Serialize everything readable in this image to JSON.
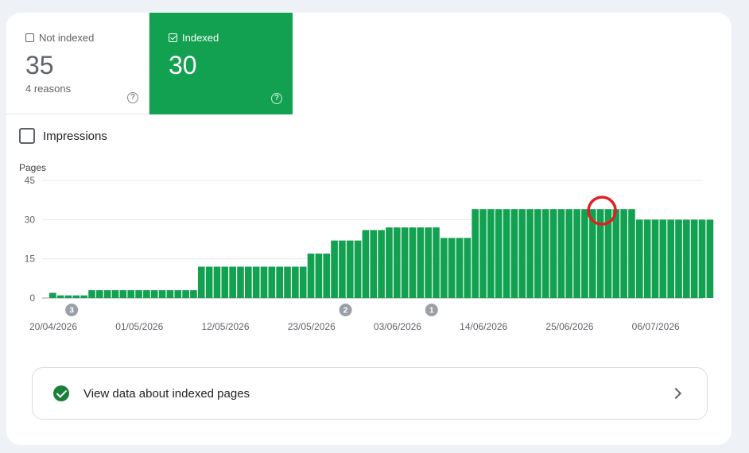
{
  "tabs": {
    "not_indexed": {
      "label": "Not indexed",
      "value": "35",
      "sub": "4 reasons",
      "checked": false
    },
    "indexed": {
      "label": "Indexed",
      "value": "30",
      "checked": true
    }
  },
  "help_glyph": "?",
  "impressions": {
    "label": "Impressions",
    "checked": false
  },
  "view_button": {
    "label": "View data about indexed pages",
    "icon": "check-circle-icon"
  },
  "colors": {
    "accent": "#12a151",
    "bar": "#12a151",
    "highlight": "#e02020"
  },
  "chart_data": {
    "type": "bar",
    "ylabel": "Pages",
    "ylim": [
      0,
      45
    ],
    "yticks": [
      0,
      15,
      30,
      45
    ],
    "x_start": "20/04/2026",
    "x_labels": [
      "20/04/2026",
      "01/05/2026",
      "12/05/2026",
      "23/05/2026",
      "03/06/2026",
      "14/06/2026",
      "25/06/2026",
      "06/07/2026"
    ],
    "values": [
      2,
      1,
      1,
      1,
      1,
      3,
      3,
      3,
      3,
      3,
      3,
      3,
      3,
      3,
      3,
      3,
      3,
      3,
      3,
      12,
      12,
      12,
      12,
      12,
      12,
      12,
      12,
      12,
      12,
      12,
      12,
      12,
      12,
      17,
      17,
      17,
      22,
      22,
      22,
      22,
      26,
      26,
      26,
      27,
      27,
      27,
      27,
      27,
      27,
      27,
      23,
      23,
      23,
      23,
      34,
      34,
      34,
      34,
      34,
      34,
      34,
      34,
      34,
      34,
      34,
      34,
      34,
      34,
      34,
      34,
      34,
      34,
      34,
      34,
      34,
      30,
      30,
      30,
      30,
      30,
      30,
      30,
      30,
      30,
      30
    ],
    "annotations": [
      {
        "label": "3",
        "index": 1
      },
      {
        "label": "2",
        "index": 36
      },
      {
        "label": "1",
        "index": 47
      }
    ],
    "highlight_index": 70
  }
}
